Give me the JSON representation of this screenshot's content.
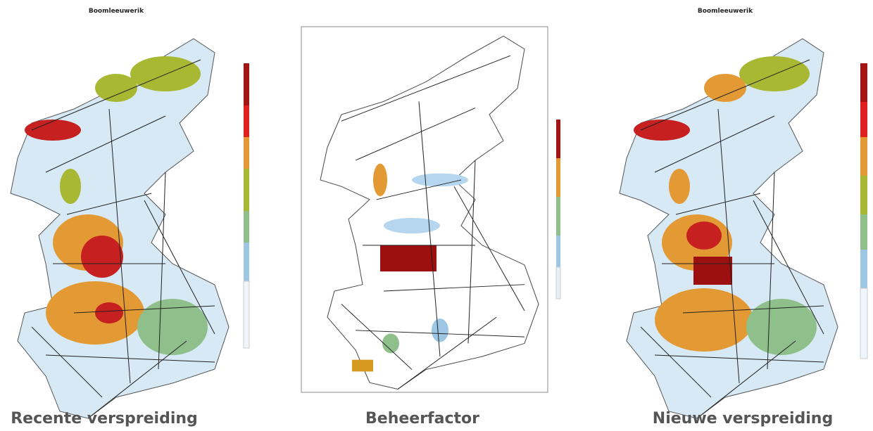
{
  "panels": [
    {
      "title": "Boomleeuwerik",
      "caption": "Recente verspreiding"
    },
    {
      "caption": "Beheerfactor"
    },
    {
      "title": "Boomleeuwerik",
      "caption": "Nieuwe verspreiding"
    }
  ]
}
